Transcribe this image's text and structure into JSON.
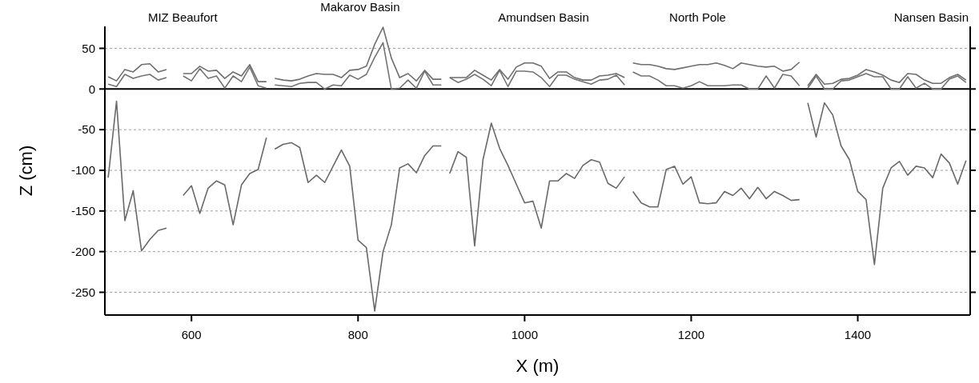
{
  "chart_data": {
    "type": "line",
    "xlabel": "X (m)",
    "ylabel": "Z (cm)",
    "annotations": [
      "MIZ Beaufort",
      "Makarov Basin",
      "Amundsen Basin",
      "North Pole",
      "Nansen Basin"
    ],
    "series": [
      {
        "color": "#6e6e6e",
        "x": [
          500,
          510,
          520,
          530,
          540,
          550,
          560,
          570
        ],
        "values": [
          15,
          10,
          24,
          21,
          30,
          31,
          21,
          24
        ]
      },
      {
        "color": "#6e6e6e",
        "x": [
          590,
          600,
          610,
          620,
          630,
          640,
          650,
          660,
          670,
          680,
          690
        ],
        "values": [
          19,
          19,
          28,
          22,
          23,
          13,
          21,
          16,
          30,
          9,
          9
        ]
      },
      {
        "color": "#6e6e6e",
        "x": [
          700,
          710,
          720,
          730,
          740,
          750,
          760,
          770,
          780,
          790,
          800,
          810,
          820,
          830,
          840,
          850,
          860,
          870,
          880,
          890,
          900
        ],
        "values": [
          13,
          11,
          10,
          12,
          16,
          19,
          18,
          18,
          14,
          23,
          24,
          28,
          55,
          76,
          38,
          14,
          19,
          10,
          23,
          12,
          12
        ]
      },
      {
        "color": "#6e6e6e",
        "x": [
          910,
          920,
          930,
          940,
          950,
          960,
          970,
          980,
          990,
          1000,
          1010,
          1020,
          1030,
          1040,
          1050,
          1060,
          1070,
          1080,
          1090,
          1100,
          1110,
          1120
        ],
        "values": [
          14,
          14,
          14,
          23,
          17,
          11,
          24,
          12,
          27,
          32,
          32,
          28,
          13,
          21,
          21,
          14,
          11,
          11,
          16,
          17,
          19,
          14
        ]
      },
      {
        "color": "#6e6e6e",
        "x": [
          1130,
          1140,
          1150,
          1160,
          1170,
          1180,
          1190,
          1200,
          1210,
          1220,
          1230,
          1240,
          1250,
          1260,
          1270,
          1280,
          1290,
          1300,
          1310,
          1320,
          1330
        ],
        "values": [
          32,
          30,
          30,
          28,
          25,
          24,
          26,
          28,
          30,
          30,
          32,
          29,
          25,
          32,
          30,
          28,
          27,
          28,
          22,
          24,
          33
        ]
      },
      {
        "color": "#6e6e6e",
        "x": [
          1340,
          1350,
          1360,
          1370,
          1380,
          1390,
          1400,
          1410,
          1420,
          1430,
          1440,
          1450,
          1460,
          1470,
          1480,
          1490,
          1500,
          1510,
          1520,
          1530
        ],
        "values": [
          4,
          18,
          6,
          7,
          12,
          13,
          17,
          24,
          21,
          17,
          11,
          8,
          19,
          18,
          11,
          7,
          7,
          14,
          18,
          11
        ]
      },
      {
        "color": "#737373",
        "x": [
          500,
          510,
          520,
          530,
          540,
          550,
          560,
          570
        ],
        "values": [
          6,
          3,
          18,
          13,
          16,
          18,
          11,
          14
        ]
      },
      {
        "color": "#737373",
        "x": [
          590,
          600,
          610,
          620,
          630,
          640,
          650,
          660,
          670,
          680,
          690
        ],
        "values": [
          16,
          10,
          25,
          13,
          16,
          1,
          16,
          9,
          27,
          4,
          1
        ]
      },
      {
        "color": "#737373",
        "x": [
          700,
          710,
          720,
          730,
          740,
          750,
          760,
          770,
          780,
          790,
          800,
          810,
          820,
          830,
          840,
          850,
          860,
          870,
          880,
          890,
          900
        ],
        "values": [
          5,
          4,
          3,
          7,
          8,
          8,
          0,
          5,
          4,
          17,
          12,
          18,
          39,
          57,
          0,
          1,
          11,
          1,
          22,
          5,
          5
        ]
      },
      {
        "color": "#737373",
        "x": [
          910,
          920,
          930,
          940,
          950,
          960,
          970,
          980,
          990,
          1000,
          1010,
          1020,
          1030,
          1040,
          1050,
          1060,
          1070,
          1080,
          1090,
          1100,
          1110,
          1120
        ],
        "values": [
          14,
          8,
          12,
          18,
          12,
          4,
          23,
          3,
          22,
          22,
          21,
          14,
          3,
          17,
          17,
          12,
          9,
          6,
          11,
          12,
          17,
          5
        ]
      },
      {
        "color": "#737373",
        "x": [
          1130,
          1140,
          1150,
          1160,
          1170,
          1180,
          1190,
          1200,
          1210,
          1220,
          1230,
          1240,
          1250,
          1260,
          1270,
          1280,
          1290,
          1300,
          1310,
          1320,
          1330
        ],
        "values": [
          21,
          16,
          16,
          11,
          4,
          4,
          1,
          4,
          9,
          4,
          4,
          4,
          5,
          5,
          0,
          0,
          16,
          1,
          18,
          16,
          4
        ]
      },
      {
        "color": "#737373",
        "x": [
          1340,
          1350,
          1360,
          1370,
          1380,
          1390,
          1400,
          1410,
          1420,
          1430,
          1440,
          1450,
          1460,
          1470,
          1480,
          1490,
          1500,
          1510,
          1520,
          1530
        ],
        "values": [
          1,
          16,
          0,
          0,
          10,
          11,
          15,
          19,
          15,
          15,
          0,
          0,
          15,
          1,
          7,
          0,
          0,
          12,
          16,
          8
        ]
      },
      {
        "color": "#696969",
        "x": [
          500,
          510,
          520,
          530,
          540,
          550,
          560,
          570
        ],
        "values": [
          -109,
          -15,
          -162,
          -125,
          -199,
          -185,
          -174,
          -171
        ]
      },
      {
        "color": "#696969",
        "x": [
          590,
          600,
          610,
          620,
          630,
          640,
          650,
          660,
          670,
          680,
          690
        ],
        "values": [
          -131,
          -119,
          -153,
          -122,
          -113,
          -118,
          -167,
          -118,
          -104,
          -99,
          -60
        ]
      },
      {
        "color": "#696969",
        "x": [
          700,
          710,
          720,
          730,
          740,
          750,
          760,
          770,
          780,
          790,
          800,
          810,
          820,
          830,
          840,
          850,
          860,
          870,
          880,
          890,
          900
        ],
        "values": [
          -74,
          -68,
          -66,
          -72,
          -115,
          -106,
          -115,
          -95,
          -75,
          -95,
          -186,
          -195,
          -273,
          -200,
          -167,
          -97,
          -92,
          -103,
          -82,
          -70,
          -70
        ]
      },
      {
        "color": "#696969",
        "x": [
          910,
          920,
          930,
          940,
          950,
          960,
          970,
          980,
          990,
          1000,
          1010,
          1020,
          1030,
          1040,
          1050,
          1060,
          1070,
          1080,
          1090,
          1100,
          1110,
          1120
        ],
        "values": [
          -104,
          -77,
          -84,
          -193,
          -87,
          -42,
          -73,
          -94,
          -117,
          -140,
          -138,
          -171,
          -113,
          -113,
          -104,
          -110,
          -94,
          -87,
          -90,
          -116,
          -122,
          -108
        ]
      },
      {
        "color": "#696969",
        "x": [
          1130,
          1140,
          1150,
          1160,
          1170,
          1180,
          1190,
          1200,
          1210,
          1220,
          1230,
          1240,
          1250,
          1260,
          1270,
          1280,
          1290,
          1300,
          1310,
          1320,
          1330
        ],
        "values": [
          -126,
          -140,
          -145,
          -145,
          -99,
          -95,
          -117,
          -108,
          -140,
          -141,
          -140,
          -126,
          -131,
          -122,
          -135,
          -121,
          -135,
          -126,
          -131,
          -137,
          -136
        ]
      },
      {
        "color": "#696969",
        "x": [
          1340,
          1350,
          1360,
          1370,
          1380,
          1390,
          1400,
          1410,
          1420,
          1430,
          1440,
          1450,
          1460,
          1470,
          1480,
          1490,
          1500,
          1510,
          1520,
          1530
        ],
        "values": [
          -17,
          -59,
          -17,
          -32,
          -70,
          -87,
          -126,
          -136,
          -216,
          -122,
          -97,
          -89,
          -106,
          -95,
          -97,
          -109,
          -80,
          -91,
          -117,
          -88
        ]
      }
    ],
    "xlim": [
      496,
      1535
    ],
    "ylim": [
      -278,
      77
    ],
    "xticks": [
      600,
      800,
      1000,
      1200,
      1400
    ],
    "yticks": [
      50,
      0,
      -50,
      -100,
      -150,
      -200,
      -250
    ],
    "grid": "y",
    "line_style": "solid",
    "marker": "none",
    "ref_lines": [
      {
        "axis": "y",
        "value": 0,
        "color": "#000000",
        "line_style": "solid"
      }
    ]
  }
}
